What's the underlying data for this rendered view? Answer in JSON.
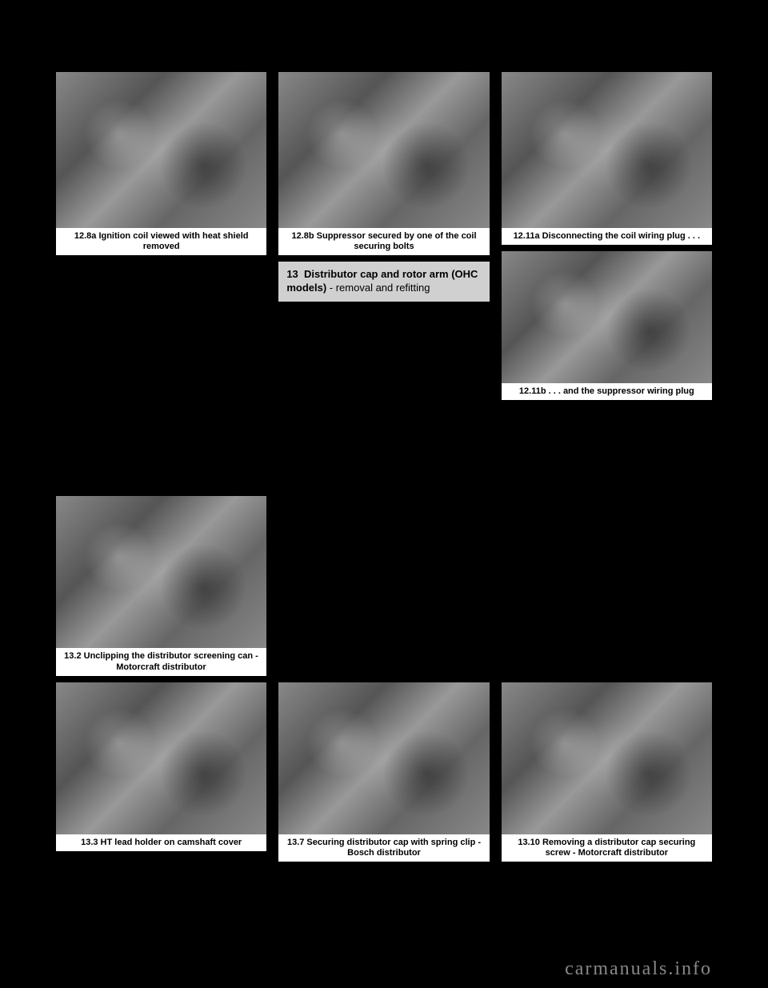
{
  "top_row": {
    "left": {
      "caption": "12.8a Ignition coil viewed with heat shield removed",
      "photo_height": 195
    },
    "center": {
      "caption": "12.8b Suppressor secured by one of the coil securing bolts",
      "photo_height": 195,
      "callout": {
        "number": "13",
        "title": "Distributor cap and rotor arm (OHC models)",
        "subtitle": " - removal and refitting"
      }
    },
    "right_top": {
      "caption": "12.11a Disconnecting the coil wiring plug . . .",
      "photo_height": 195
    },
    "right_bottom": {
      "caption": "12.11b . . . and the suppressor wiring plug",
      "photo_height": 165
    }
  },
  "middle_left": {
    "caption": "13.2 Unclipping the distributor screening can - Motorcraft distributor",
    "photo_height": 190
  },
  "bottom_row": {
    "left": {
      "caption": "13.3 HT lead holder on camshaft cover",
      "photo_height": 190
    },
    "center": {
      "caption": "13.7 Securing distributor cap with spring clip - Bosch distributor",
      "photo_height": 190
    },
    "right": {
      "caption": "13.10 Removing a distributor cap securing screw - Motorcraft distributor",
      "photo_height": 190
    }
  },
  "watermark": "carmanuals.info"
}
